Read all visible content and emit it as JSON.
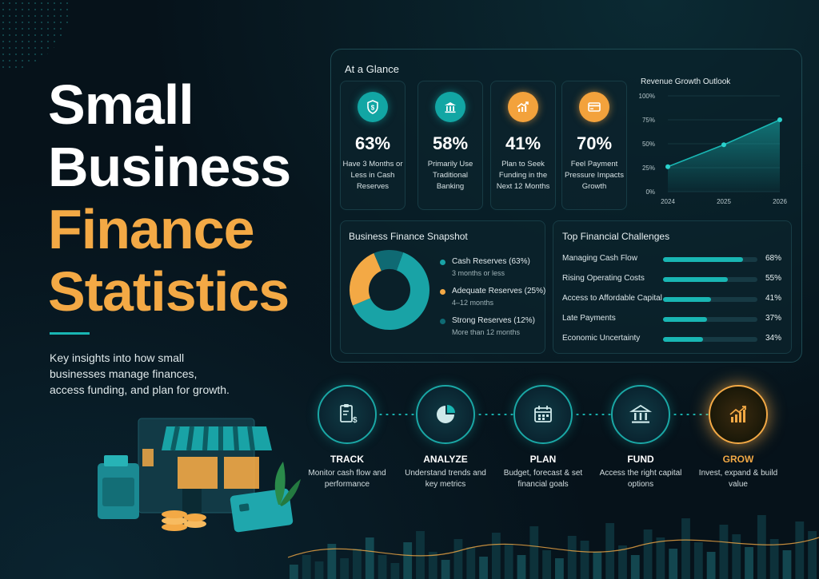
{
  "hero": {
    "title_line1": "Small",
    "title_line2": "Business",
    "title_line3": "Finance",
    "title_line4": "Statistics",
    "subtitle": "Key insights into how small businesses manage finances, access funding, and plan for growth."
  },
  "glance": {
    "heading": "At a Glance",
    "stats": [
      {
        "value": "63%",
        "label": "Have 3 Months or Less in Cash Reserves",
        "icon": "shield-dollar-icon"
      },
      {
        "value": "58%",
        "label": "Primarily Use Traditional Banking",
        "icon": "bank-icon"
      },
      {
        "value": "41%",
        "label": "Plan to Seek Funding in the Next 12 Months",
        "icon": "growth-chart-icon"
      },
      {
        "value": "70%",
        "label": "Feel Payment Pressure Impacts Growth",
        "icon": "credit-card-icon"
      }
    ]
  },
  "chart_data": [
    {
      "type": "area",
      "title": "Revenue Growth Outlook",
      "x": [
        "2024",
        "2025",
        "2026"
      ],
      "values": [
        26,
        49,
        75
      ],
      "yticks": [
        "0%",
        "25%",
        "50%",
        "75%",
        "100%"
      ],
      "ylim": [
        0,
        100
      ],
      "color": "#19b6b3"
    },
    {
      "type": "pie",
      "title": "Business Finance Snapshot",
      "slices": [
        {
          "label": "Cash Reserves (63%)",
          "sub": "3 months or less",
          "value": 63,
          "color": "#19a3a6"
        },
        {
          "label": "Adequate Reserves (25%)",
          "sub": "4–12 months",
          "value": 25,
          "color": "#f3a945"
        },
        {
          "label": "Strong Reserves (12%)",
          "sub": "More than 12 months",
          "value": 12,
          "color": "#0f6a73"
        }
      ]
    },
    {
      "type": "bar",
      "title": "Top Financial Challenges",
      "categories": [
        "Managing Cash Flow",
        "Rising Operating Costs",
        "Access to Affordable Capital",
        "Late Payments",
        "Economic Uncertainty"
      ],
      "values": [
        68,
        55,
        41,
        37,
        34
      ],
      "labels": [
        "68%",
        "55%",
        "41%",
        "37%",
        "34%"
      ]
    }
  ],
  "steps": [
    {
      "name": "TRACK",
      "desc": "Monitor cash flow and performance",
      "icon": "receipt-icon"
    },
    {
      "name": "ANALYZE",
      "desc": "Understand trends and key metrics",
      "icon": "pie-chart-icon"
    },
    {
      "name": "PLAN",
      "desc": "Budget, forecast & set financial goals",
      "icon": "calendar-icon"
    },
    {
      "name": "FUND",
      "desc": "Access the right capital options",
      "icon": "bank-icon"
    },
    {
      "name": "GROW",
      "desc": "Invest, expand & build value",
      "icon": "bar-growth-icon"
    }
  ]
}
